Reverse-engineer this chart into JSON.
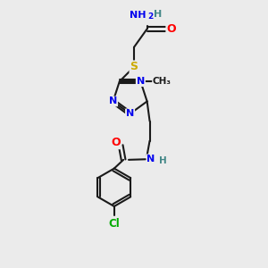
{
  "bg_color": "#ebebeb",
  "bond_color": "#1a1a1a",
  "atom_colors": {
    "N": "#0000ee",
    "O": "#ff0000",
    "S": "#ccaa00",
    "Cl": "#00aa00",
    "C": "#1a1a1a",
    "H": "#448888"
  },
  "figsize": [
    3.0,
    3.0
  ],
  "dpi": 100
}
